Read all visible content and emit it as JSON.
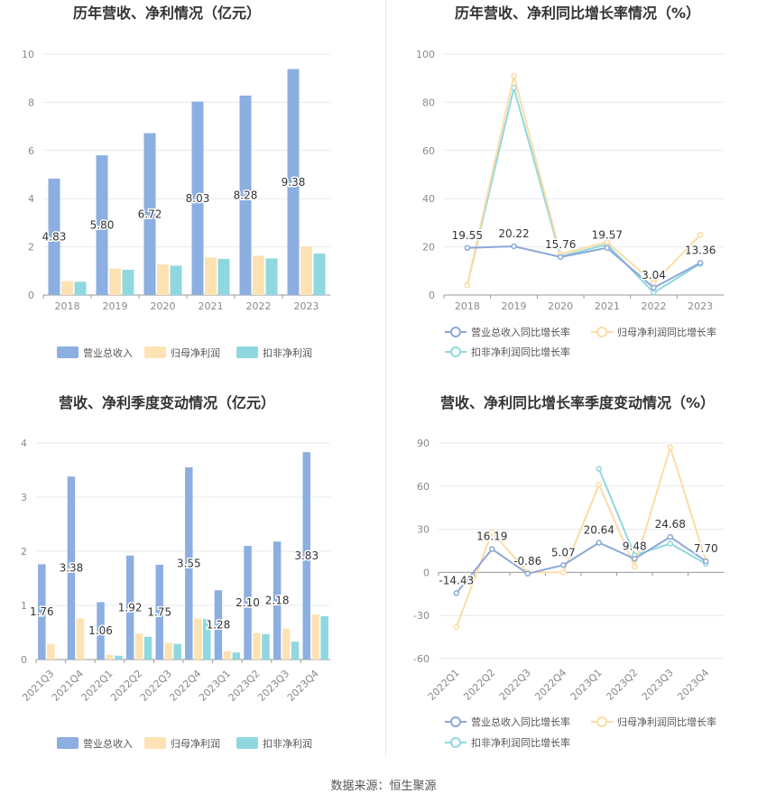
{
  "colors": {
    "revenue": "#8caee0",
    "net_profit": "#fde2b4",
    "deducted_profit": "#8fd8df",
    "grid": "#e6e9f0",
    "axis_text": "#8a8a8a",
    "title": "#333333"
  },
  "legend": {
    "bar_labels": [
      "营业总收入",
      "归母净利润",
      "扣非净利润"
    ],
    "line_labels": [
      "营业总收入同比增长率",
      "归母净利润同比增长率",
      "扣非净利润同比增长率"
    ]
  },
  "source_text": "数据来源：恒生聚源",
  "chart_data": [
    {
      "type": "bar",
      "title": "历年营收、净利情况（亿元）",
      "categories": [
        "2018",
        "2019",
        "2020",
        "2021",
        "2022",
        "2023"
      ],
      "ylim": [
        0,
        10
      ],
      "yticks": [
        0,
        2,
        4,
        6,
        8,
        10
      ],
      "series": [
        {
          "name": "营业总收入",
          "values": [
            4.83,
            5.8,
            6.72,
            8.03,
            8.28,
            9.38
          ],
          "labels": [
            "4.83",
            "5.80",
            "6.72",
            "8.03",
            "8.28",
            "9.38"
          ]
        },
        {
          "name": "归母净利润",
          "values": [
            0.58,
            1.1,
            1.27,
            1.56,
            1.63,
            2.02
          ]
        },
        {
          "name": "扣非净利润",
          "values": [
            0.55,
            1.05,
            1.22,
            1.5,
            1.52,
            1.72
          ]
        }
      ],
      "legend_position": "bottom"
    },
    {
      "type": "line",
      "title": "历年营收、净利同比增长率情况（%）",
      "categories": [
        "2018",
        "2019",
        "2020",
        "2021",
        "2022",
        "2023"
      ],
      "ylim": [
        0,
        100
      ],
      "yticks": [
        0,
        20,
        40,
        60,
        80,
        100
      ],
      "series": [
        {
          "name": "营业总收入同比增长率",
          "values": [
            19.55,
            20.22,
            15.76,
            19.57,
            3.04,
            13.36
          ],
          "labels": [
            "19.55",
            "20.22",
            "15.76",
            "19.57",
            "3.04",
            "13.36"
          ]
        },
        {
          "name": "归母净利润同比增长率",
          "values": [
            4,
            91,
            17,
            22,
            5,
            25
          ]
        },
        {
          "name": "扣非净利润同比增长率",
          "values": [
            4,
            86,
            16,
            21,
            1,
            13
          ]
        }
      ],
      "legend_position": "bottom"
    },
    {
      "type": "bar",
      "title": "营收、净利季度变动情况（亿元）",
      "categories": [
        "2021Q3",
        "2021Q4",
        "2022Q1",
        "2022Q2",
        "2022Q3",
        "2022Q4",
        "2023Q1",
        "2023Q2",
        "2023Q3",
        "2023Q4"
      ],
      "ylim": [
        0,
        4
      ],
      "yticks": [
        0,
        1,
        2,
        3,
        4
      ],
      "series": [
        {
          "name": "营业总收入",
          "values": [
            1.76,
            3.38,
            1.06,
            1.92,
            1.75,
            3.55,
            1.28,
            2.1,
            2.18,
            3.83
          ],
          "labels": [
            "1.76",
            "3.38",
            "1.06",
            "1.92",
            "1.75",
            "3.55",
            "1.28",
            "2.10",
            "2.18",
            "3.83"
          ]
        },
        {
          "name": "归母净利润",
          "values": [
            0.29,
            0.76,
            0.09,
            0.48,
            0.31,
            0.76,
            0.15,
            0.49,
            0.57,
            0.83
          ]
        },
        {
          "name": "扣非净利润",
          "values": [
            0.0,
            0.0,
            0.07,
            0.42,
            0.29,
            0.75,
            0.13,
            0.47,
            0.33,
            0.8
          ]
        }
      ],
      "legend_position": "bottom"
    },
    {
      "type": "line",
      "title": "营收、净利同比增长率季度变动情况（%）",
      "categories": [
        "2022Q1",
        "2022Q2",
        "2022Q3",
        "2022Q4",
        "2023Q1",
        "2023Q2",
        "2023Q3",
        "2023Q4"
      ],
      "ylim": [
        -60,
        90
      ],
      "yticks": [
        -60,
        -30,
        0,
        30,
        60,
        90
      ],
      "series": [
        {
          "name": "营业总收入同比增长率",
          "values": [
            -14.43,
            16.19,
            -0.86,
            5.07,
            20.64,
            9.48,
            24.68,
            7.7
          ],
          "labels": [
            "-14.43",
            "16.19",
            "-0.86",
            "5.07",
            "20.64",
            "9.48",
            "24.68",
            "7.70"
          ]
        },
        {
          "name": "归母净利润同比增长率",
          "values": [
            -38,
            28,
            0,
            0,
            61,
            4,
            87,
            8
          ]
        },
        {
          "name": "扣非净利润同比增长率",
          "values": [
            null,
            null,
            null,
            null,
            72,
            12,
            20,
            6
          ]
        }
      ],
      "legend_position": "bottom"
    }
  ]
}
